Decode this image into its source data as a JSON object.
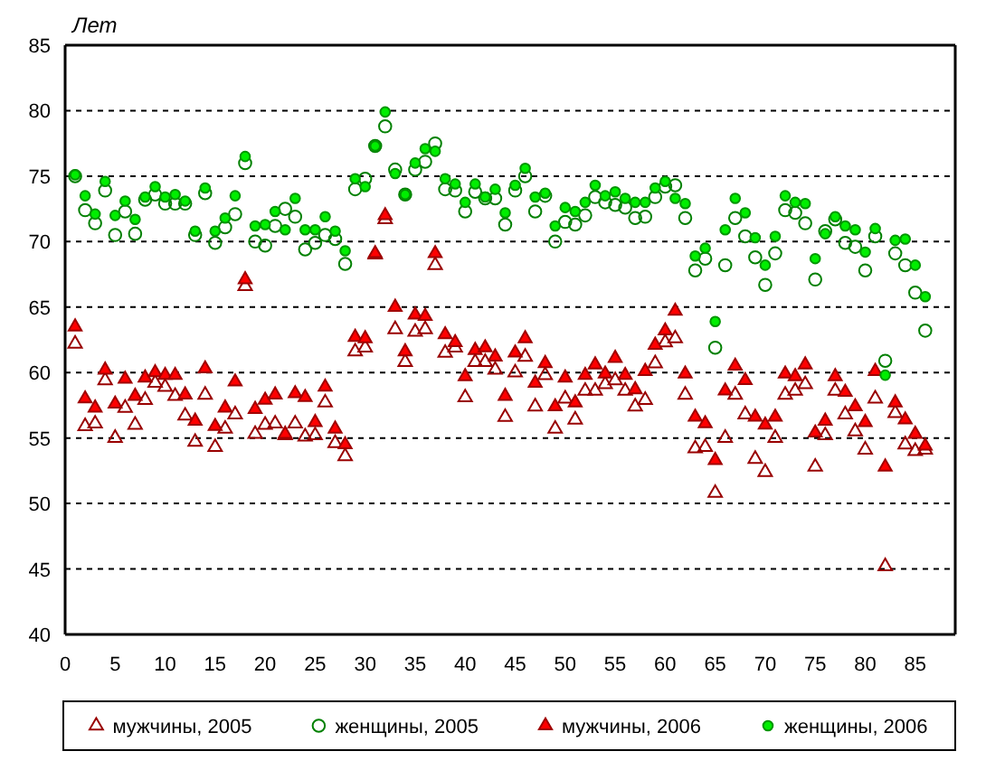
{
  "chart_data": {
    "type": "scatter",
    "ylabel": "Лет",
    "x": [
      1,
      2,
      3,
      4,
      5,
      6,
      7,
      8,
      9,
      10,
      11,
      12,
      13,
      14,
      15,
      16,
      17,
      18,
      19,
      20,
      21,
      22,
      23,
      24,
      25,
      26,
      27,
      28,
      29,
      30,
      31,
      32,
      33,
      34,
      35,
      36,
      37,
      38,
      39,
      40,
      41,
      42,
      43,
      44,
      45,
      46,
      47,
      48,
      49,
      50,
      51,
      52,
      53,
      54,
      55,
      56,
      57,
      58,
      59,
      60,
      61,
      62,
      63,
      64,
      65,
      66,
      67,
      68,
      69,
      70,
      71,
      72,
      73,
      74,
      75,
      76,
      77,
      78,
      79,
      80,
      81,
      82,
      83,
      84,
      85,
      86
    ],
    "xlim": [
      0,
      89
    ],
    "ylim": [
      40,
      85
    ],
    "xticks": [
      0,
      5,
      10,
      15,
      20,
      25,
      30,
      35,
      40,
      45,
      50,
      55,
      60,
      65,
      70,
      75,
      80,
      85
    ],
    "yticks": [
      40,
      45,
      50,
      55,
      60,
      65,
      70,
      75,
      80,
      85
    ],
    "grid": "y",
    "legend": "bottom",
    "series": [
      {
        "name": "мужчины, 2005",
        "color": "#990000",
        "marker": "triangle-open",
        "values": [
          62.2,
          55.9,
          56.1,
          59.4,
          55.0,
          57.3,
          56.0,
          57.9,
          59.2,
          58.9,
          58.2,
          56.7,
          54.7,
          58.3,
          54.3,
          55.7,
          56.8,
          66.6,
          55.3,
          56.0,
          56.1,
          55.2,
          56.1,
          55.1,
          55.2,
          57.7,
          54.6,
          53.6,
          61.6,
          61.9,
          69.0,
          71.7,
          63.3,
          60.8,
          63.1,
          63.3,
          68.2,
          61.5,
          61.9,
          58.1,
          60.8,
          60.8,
          60.2,
          56.6,
          60.0,
          61.2,
          57.4,
          59.8,
          55.7,
          58.0,
          56.4,
          58.6,
          58.6,
          59.1,
          59.4,
          58.6,
          57.4,
          57.9,
          60.7,
          62.3,
          62.6,
          58.3,
          54.2,
          54.3,
          50.8,
          55.0,
          58.3,
          56.8,
          53.4,
          52.4,
          55.0,
          58.3,
          58.6,
          59.1,
          52.8,
          55.2,
          58.6,
          56.8,
          55.5,
          54.1,
          58.0,
          45.2,
          56.9,
          54.5,
          54.0,
          54.1
        ]
      },
      {
        "name": "женщины, 2005",
        "color": "#008000",
        "marker": "circle-open",
        "values": [
          75.0,
          72.4,
          71.4,
          73.9,
          70.5,
          72.3,
          70.6,
          73.2,
          73.6,
          72.9,
          72.9,
          72.9,
          70.5,
          73.7,
          69.9,
          71.1,
          72.1,
          76.0,
          70.0,
          69.7,
          71.2,
          72.5,
          71.9,
          69.4,
          69.9,
          70.5,
          70.2,
          68.3,
          74.0,
          74.8,
          77.3,
          78.8,
          75.5,
          73.6,
          75.5,
          76.1,
          77.5,
          74.0,
          73.9,
          72.3,
          73.8,
          73.3,
          73.3,
          71.3,
          73.9,
          75.0,
          72.3,
          73.5,
          70.0,
          71.5,
          71.3,
          72.0,
          73.4,
          73.0,
          72.8,
          72.6,
          71.8,
          71.9,
          73.4,
          74.2,
          74.3,
          71.8,
          67.8,
          68.7,
          61.9,
          68.2,
          71.8,
          70.4,
          68.8,
          66.7,
          69.1,
          72.4,
          72.2,
          71.4,
          67.1,
          70.8,
          71.7,
          69.9,
          69.6,
          67.8,
          70.4,
          60.9,
          69.1,
          68.2,
          66.1,
          63.2
        ]
      },
      {
        "name": "мужчины, 2006",
        "color": "#ff0000",
        "marker": "triangle",
        "values": [
          63.5,
          58.0,
          57.3,
          60.2,
          57.6,
          59.5,
          58.2,
          59.6,
          60.0,
          59.8,
          59.8,
          58.3,
          56.3,
          60.3,
          55.9,
          57.3,
          59.3,
          67.1,
          57.2,
          57.9,
          58.3,
          55.3,
          58.4,
          58.1,
          56.2,
          58.9,
          55.7,
          54.5,
          62.7,
          62.6,
          69.1,
          72.0,
          65.0,
          61.6,
          64.4,
          64.3,
          69.1,
          62.9,
          62.3,
          59.7,
          61.7,
          61.9,
          61.2,
          58.2,
          61.5,
          62.6,
          59.2,
          60.7,
          57.4,
          59.6,
          57.7,
          59.8,
          60.6,
          59.9,
          61.1,
          59.8,
          58.7,
          60.1,
          62.1,
          63.2,
          64.7,
          59.9,
          56.6,
          56.1,
          53.3,
          58.6,
          60.5,
          59.4,
          56.6,
          56.0,
          56.6,
          59.9,
          59.7,
          60.6,
          55.4,
          56.3,
          59.7,
          58.5,
          57.4,
          56.2,
          60.1,
          52.8,
          57.7,
          56.4,
          55.3,
          54.4
        ]
      },
      {
        "name": "женщины, 2006",
        "color": "#00ee00",
        "marker": "circle",
        "values": [
          75.1,
          73.5,
          72.1,
          74.6,
          72.0,
          73.1,
          71.7,
          73.4,
          74.2,
          73.4,
          73.6,
          73.1,
          70.8,
          74.1,
          70.8,
          71.8,
          73.5,
          76.5,
          71.2,
          71.3,
          72.3,
          70.9,
          73.3,
          70.9,
          70.9,
          71.9,
          70.8,
          69.3,
          74.8,
          74.2,
          77.3,
          79.9,
          75.2,
          73.6,
          76.0,
          77.1,
          76.9,
          74.8,
          74.4,
          73.0,
          74.4,
          73.4,
          74.0,
          72.2,
          74.3,
          75.6,
          73.4,
          73.7,
          71.2,
          72.6,
          72.3,
          73.0,
          74.3,
          73.5,
          73.8,
          73.3,
          73.0,
          73.0,
          74.1,
          74.6,
          73.3,
          72.9,
          68.9,
          69.5,
          63.9,
          70.9,
          73.3,
          72.2,
          70.3,
          68.2,
          70.4,
          73.5,
          73.0,
          72.9,
          68.7,
          70.6,
          71.9,
          71.2,
          70.9,
          69.2,
          71.0,
          59.8,
          70.1,
          70.2,
          68.2,
          65.8
        ]
      }
    ]
  }
}
